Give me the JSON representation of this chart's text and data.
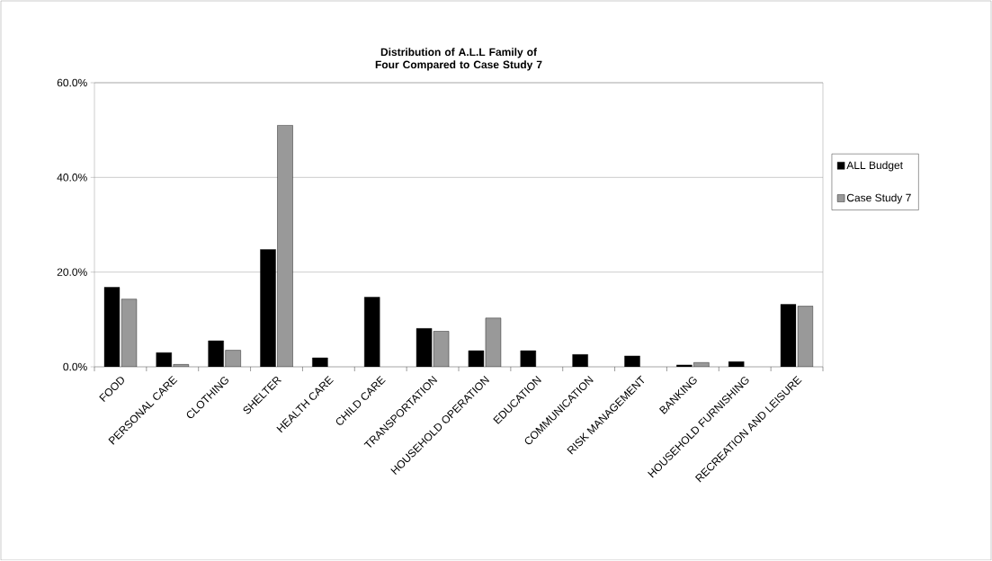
{
  "chart_data": {
    "type": "bar",
    "title": "Distribution of A.L.L Family of Four Compared to Case Study 7",
    "categories": [
      "FOOD",
      "PERSONAL CARE",
      "CLOTHING",
      "SHELTER",
      "HEALTH CARE",
      "CHILD CARE",
      "TRANSPORTATION",
      "HOUSEHOLD OPERATION",
      "EDUCATION",
      "COMMUNICATION",
      "RISK MANAGEMENT",
      "BANKING",
      "HOUSEHOLD FURNISHING",
      "RECREATION AND LEISURE"
    ],
    "series": [
      {
        "name": "ALL Budget",
        "color": "#000000",
        "values": [
          16.8,
          3.0,
          5.5,
          24.8,
          1.9,
          14.7,
          8.1,
          3.4,
          3.4,
          2.6,
          2.3,
          0.4,
          1.1,
          13.2
        ]
      },
      {
        "name": "Case Study 7",
        "color": "#999999",
        "values": [
          14.3,
          0.5,
          3.5,
          51.0,
          null,
          null,
          7.5,
          10.3,
          null,
          null,
          null,
          0.9,
          null,
          12.8
        ]
      }
    ],
    "ylim": [
      0,
      60
    ],
    "yticks": [
      {
        "value": 0,
        "label": "0.0%"
      },
      {
        "value": 20,
        "label": "20.0%"
      },
      {
        "value": 40,
        "label": "40.0%"
      },
      {
        "value": 60,
        "label": "60.0%"
      }
    ],
    "grid": "y",
    "legend": "right"
  }
}
